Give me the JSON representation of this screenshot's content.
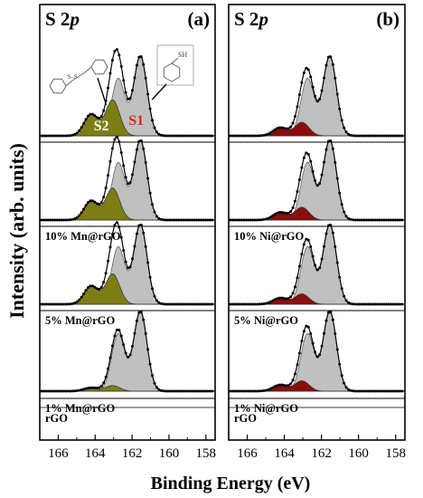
{
  "figure": {
    "ylabel": "Intensity (arb. units)",
    "xlabel": "Binding Energy (eV)"
  },
  "colors": {
    "data_line": "#000000",
    "envelope": "#000000",
    "s1_fill": "#c0c0c0",
    "s2_fill_mn": "#7d7d16",
    "s2_fill_ni": "#8b0d0d",
    "s1_label": "#e0231f",
    "s2_label": "#ffffff"
  },
  "chart_data": [
    {
      "type": "area",
      "panel_label": "(a)",
      "title_main": "S 2",
      "title_italic": "p",
      "x_ticks": [
        166,
        164,
        162,
        160,
        158
      ],
      "xlim": [
        167,
        157.5
      ],
      "annotations": {
        "s1": "S1",
        "s2": "S2",
        "s1_molecule": "SH",
        "s2_molecule": "S–S"
      },
      "stacks": [
        {
          "label": "",
          "s1_peak": 1.0,
          "s2_peak": 0.45
        },
        {
          "label": "10% Mn@rGO",
          "s1_peak": 1.0,
          "s2_peak": 0.4
        },
        {
          "label": "5% Mn@rGO",
          "s1_peak": 1.0,
          "s2_peak": 0.38
        },
        {
          "label": "1% Mn@rGO",
          "s1_peak": 1.0,
          "s2_peak": 0.07
        },
        {
          "label": "rGO",
          "s1_peak": 0.0,
          "s2_peak": 0.0
        }
      ]
    },
    {
      "type": "area",
      "panel_label": "(b)",
      "title_main": "S 2",
      "title_italic": "p",
      "x_ticks": [
        166,
        164,
        162,
        160,
        158
      ],
      "xlim": [
        167,
        157.5
      ],
      "stacks": [
        {
          "label": "",
          "s1_peak": 1.0,
          "s2_peak": 0.17
        },
        {
          "label": "10% Ni@rGO",
          "s1_peak": 1.0,
          "s2_peak": 0.16
        },
        {
          "label": "5% Ni@rGO",
          "s1_peak": 1.0,
          "s2_peak": 0.13
        },
        {
          "label": "1% Ni@rGO",
          "s1_peak": 1.0,
          "s2_peak": 0.13
        },
        {
          "label": "rGO",
          "s1_peak": 0.0,
          "s2_peak": 0.0
        }
      ]
    }
  ]
}
